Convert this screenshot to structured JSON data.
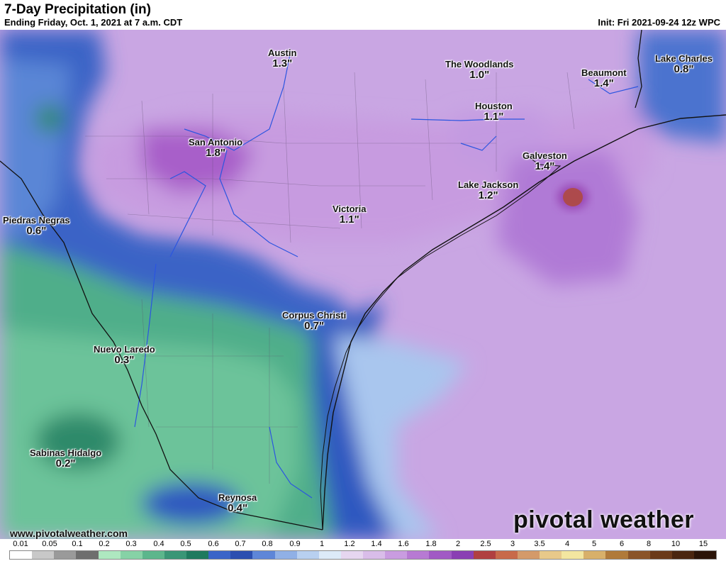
{
  "header": {
    "title": "7-Day Precipitation (in)",
    "subtitle": "Ending Friday, Oct. 1, 2021 at 7 a.m. CDT",
    "init": "Init: Fri 2021-09-24 12z WPC"
  },
  "cities": [
    {
      "name": "Austin",
      "value": "1.3\""
    },
    {
      "name": "The Woodlands",
      "value": "1.0\""
    },
    {
      "name": "Beaumont",
      "value": "1.4\""
    },
    {
      "name": "Lake Charles",
      "value": "0.8\""
    },
    {
      "name": "Houston",
      "value": "1.1\""
    },
    {
      "name": "San Antonio",
      "value": "1.8\""
    },
    {
      "name": "Galveston",
      "value": "1.4\""
    },
    {
      "name": "Lake Jackson",
      "value": "1.2\""
    },
    {
      "name": "Piedras Negras",
      "value": "0.6\""
    },
    {
      "name": "Victoria",
      "value": "1.1\""
    },
    {
      "name": "Corpus Christi",
      "value": "0.7\""
    },
    {
      "name": "Nuevo Laredo",
      "value": "0.3\""
    },
    {
      "name": "Sabinas Hidalgo",
      "value": "0.2\""
    },
    {
      "name": "Reynosa",
      "value": "0.4\""
    }
  ],
  "footer": {
    "website": "www.pivotalweather.com",
    "brand": "pivotal weather",
    "brand_icon": "gear-icon"
  },
  "legend": {
    "ticks": [
      "0.01",
      "0.05",
      "0.1",
      "0.2",
      "0.3",
      "0.4",
      "0.5",
      "0.6",
      "0.7",
      "0.8",
      "0.9",
      "1",
      "1.2",
      "1.4",
      "1.6",
      "1.8",
      "2",
      "2.5",
      "3",
      "3.5",
      "4",
      "5",
      "6",
      "8",
      "10",
      "15"
    ],
    "colors": [
      "#ffffff",
      "#c8c8c8",
      "#9a9a9a",
      "#6e6e6e",
      "#aee8c0",
      "#86d2a6",
      "#5cb68c",
      "#3a9676",
      "#1f7a5e",
      "#3a64c8",
      "#2c4fb0",
      "#5e86d8",
      "#90b0e6",
      "#b8d0f0",
      "#dceaf8",
      "#e6d6f0",
      "#d9bde9",
      "#c99ce0",
      "#b77ad3",
      "#a15ac4",
      "#8a3fb3",
      "#b04040",
      "#c86a4a",
      "#d49a6a",
      "#e8c98a",
      "#f3e6a0",
      "#d8b06a",
      "#b07a3a",
      "#8a5428",
      "#6a3a1a",
      "#4a2610",
      "#2a1408"
    ]
  }
}
